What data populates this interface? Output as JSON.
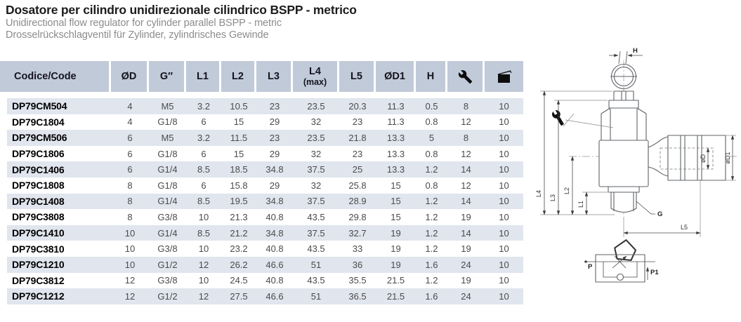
{
  "header": {
    "title": "Dosatore per cilindro unidirezionale cilindrico BSPP - metrico",
    "subtitle_en": "Unidirectional flow regulator for cylinder parallel BSPP - metric",
    "subtitle_de": "Drosselrückschlagventil für Zylinder, zylindrisches Gewinde"
  },
  "table": {
    "columns": [
      {
        "label": "Codice/Code"
      },
      {
        "label": "ØD"
      },
      {
        "label": "G″"
      },
      {
        "label": "L1"
      },
      {
        "label": "L2"
      },
      {
        "label": "L3"
      },
      {
        "label": "L4",
        "sub": "(max)"
      },
      {
        "label": "L5"
      },
      {
        "label": "ØD1"
      },
      {
        "label": "H"
      },
      {
        "icon": "wrench-icon"
      },
      {
        "icon": "package-icon"
      }
    ],
    "rows": [
      [
        "DP79CM504",
        "4",
        "M5",
        "3.2",
        "10.5",
        "23",
        "23.5",
        "20.3",
        "11.3",
        "0.5",
        "8",
        "10"
      ],
      [
        "DP79C1804",
        "4",
        "G1/8",
        "6",
        "15",
        "29",
        "32",
        "23",
        "11.3",
        "0.8",
        "12",
        "10"
      ],
      [
        "DP79CM506",
        "6",
        "M5",
        "3.2",
        "11.5",
        "23",
        "23.5",
        "21.8",
        "13.3",
        "5",
        "8",
        "10"
      ],
      [
        "DP79C1806",
        "6",
        "G1/8",
        "6",
        "15",
        "29",
        "32",
        "23",
        "13.3",
        "0.8",
        "12",
        "10"
      ],
      [
        "DP79C1406",
        "6",
        "G1/4",
        "8.5",
        "18.5",
        "34.8",
        "37.5",
        "25",
        "13.3",
        "1.2",
        "14",
        "10"
      ],
      [
        "DP79C1808",
        "8",
        "G1/8",
        "6",
        "15.8",
        "29",
        "32",
        "25.8",
        "15",
        "0.8",
        "12",
        "10"
      ],
      [
        "DP79C1408",
        "8",
        "G1/4",
        "8.5",
        "19.5",
        "34.8",
        "37.5",
        "28.9",
        "15",
        "1.2",
        "14",
        "10"
      ],
      [
        "DP79C3808",
        "8",
        "G3/8",
        "10",
        "21.3",
        "40.8",
        "43.5",
        "29.8",
        "15",
        "1.2",
        "19",
        "10"
      ],
      [
        "DP79C1410",
        "10",
        "G1/4",
        "8.5",
        "21.2",
        "34.8",
        "37.5",
        "32.7",
        "19",
        "1.2",
        "14",
        "10"
      ],
      [
        "DP79C3810",
        "10",
        "G3/8",
        "10",
        "23.2",
        "40.8",
        "43.5",
        "33",
        "19",
        "1.2",
        "19",
        "10"
      ],
      [
        "DP79C1210",
        "10",
        "G1/2",
        "12",
        "26.2",
        "46.6",
        "51",
        "36",
        "19",
        "1.6",
        "24",
        "10"
      ],
      [
        "DP79C3812",
        "12",
        "G3/8",
        "10",
        "24.5",
        "40.8",
        "43.5",
        "35.5",
        "21.5",
        "1.2",
        "19",
        "10"
      ],
      [
        "DP79C1212",
        "12",
        "G1/2",
        "12",
        "27.5",
        "46.6",
        "51",
        "36.5",
        "21.5",
        "1.6",
        "24",
        "10"
      ]
    ]
  },
  "drawing": {
    "labels": {
      "h": "H",
      "l1": "L1",
      "l2": "L2",
      "l3": "L3",
      "l4": "L4",
      "l5": "L5",
      "d": "øD",
      "d1": "øD1",
      "g": "G",
      "p": "P",
      "p1": "P1"
    }
  },
  "colors": {
    "header_bg": "#c1cad9",
    "row_stripe": "#e0e5ee",
    "title_text": "#1c1c1c",
    "subtitle_text": "#8c8c8c"
  }
}
